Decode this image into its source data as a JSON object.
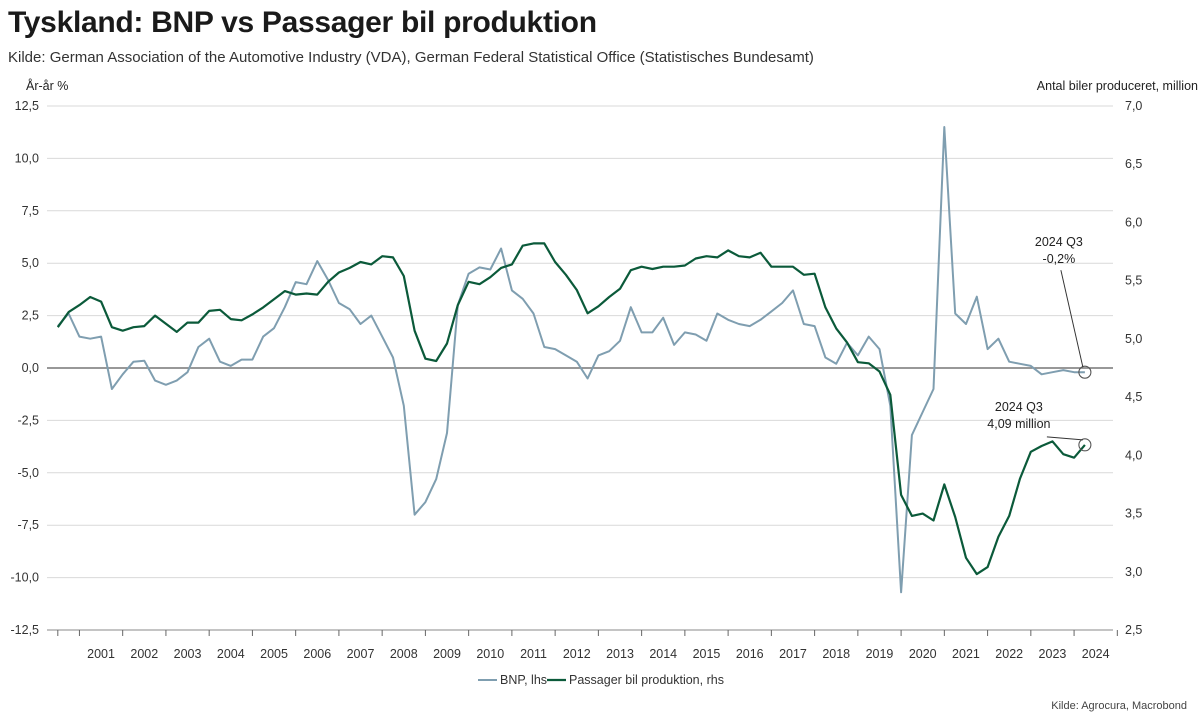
{
  "title": "Tyskland: BNP vs Passager bil produktion",
  "subtitle": "Kilde: German Association of the Automotive Industry (VDA), German Federal Statistical Office (Statistisches Bundesamt)",
  "source": "Kilde: Agrocura, Macrobond",
  "colors": {
    "gdp": "#7f9eb0",
    "cars": "#0b5a3a",
    "zero": "#777777",
    "grid": "#d9d9d9"
  },
  "chart_data": {
    "type": "line",
    "title": "Tyskland: BNP vs Passager bil produktion",
    "left_axis": {
      "label": "År-år %",
      "range": [
        -12.5,
        12.5
      ],
      "ticks": [
        "12,5",
        "10,0",
        "7,5",
        "5,0",
        "2,5",
        "0,0",
        "-2,5",
        "-5,0",
        "-7,5",
        "-10,0",
        "-12,5"
      ]
    },
    "right_axis": {
      "label": "Antal biler produceret, million",
      "range": [
        2.5,
        7.0
      ],
      "ticks": [
        "7,0",
        "6,5",
        "6,0",
        "5,5",
        "5,0",
        "4,5",
        "4,0",
        "3,5",
        "3,0",
        "2,5"
      ]
    },
    "x_labels": [
      "2001",
      "2002",
      "2003",
      "2004",
      "2005",
      "2006",
      "2007",
      "2008",
      "2009",
      "2010",
      "2011",
      "2012",
      "2013",
      "2014",
      "2015",
      "2016",
      "2017",
      "2018",
      "2019",
      "2020",
      "2021",
      "2022",
      "2023",
      "2024"
    ],
    "x_start": 2000.5,
    "x_step": 0.25,
    "series": [
      {
        "name": "BNP, lhs",
        "axis": "left",
        "values": [
          2.0,
          2.6,
          1.5,
          1.4,
          1.5,
          -1.0,
          -0.3,
          0.3,
          0.35,
          -0.6,
          -0.8,
          -0.6,
          -0.2,
          1.0,
          1.4,
          0.3,
          0.1,
          0.4,
          0.4,
          1.5,
          1.9,
          2.9,
          4.1,
          4.0,
          5.1,
          4.2,
          3.1,
          2.8,
          2.1,
          2.5,
          1.5,
          0.5,
          -1.8,
          -7.0,
          -6.4,
          -5.3,
          -3.1,
          3.0,
          4.5,
          4.8,
          4.7,
          5.7,
          3.7,
          3.3,
          2.6,
          1.0,
          0.9,
          0.6,
          0.3,
          -0.5,
          0.6,
          0.8,
          1.3,
          2.9,
          1.7,
          1.7,
          2.4,
          1.1,
          1.7,
          1.6,
          1.3,
          2.6,
          2.3,
          2.1,
          2.0,
          2.3,
          2.7,
          3.1,
          3.7,
          2.1,
          2.0,
          0.5,
          0.2,
          1.2,
          0.6,
          1.5,
          0.9,
          -1.8,
          -10.7,
          -3.2,
          -2.1,
          -1.0,
          11.5,
          2.6,
          2.1,
          3.4,
          0.9,
          1.4,
          0.3,
          0.2,
          0.1,
          -0.3,
          -0.2,
          -0.1,
          -0.2,
          -0.2
        ]
      },
      {
        "name": "Passager bil produktion, rhs",
        "axis": "right",
        "values": [
          5.1,
          5.23,
          5.29,
          5.36,
          5.32,
          5.1,
          5.07,
          5.1,
          5.11,
          5.2,
          5.13,
          5.06,
          5.14,
          5.14,
          5.24,
          5.25,
          5.17,
          5.16,
          5.21,
          5.27,
          5.34,
          5.41,
          5.38,
          5.39,
          5.38,
          5.49,
          5.57,
          5.61,
          5.66,
          5.64,
          5.71,
          5.7,
          5.54,
          5.07,
          4.83,
          4.81,
          4.96,
          5.29,
          5.49,
          5.47,
          5.53,
          5.61,
          5.64,
          5.8,
          5.82,
          5.82,
          5.66,
          5.55,
          5.42,
          5.22,
          5.28,
          5.36,
          5.43,
          5.59,
          5.62,
          5.6,
          5.62,
          5.62,
          5.63,
          5.69,
          5.71,
          5.7,
          5.76,
          5.71,
          5.7,
          5.74,
          5.62,
          5.62,
          5.62,
          5.55,
          5.56,
          5.27,
          5.09,
          4.97,
          4.8,
          4.79,
          4.72,
          4.52,
          3.66,
          3.48,
          3.5,
          3.44,
          3.75,
          3.47,
          3.12,
          2.98,
          3.04,
          3.3,
          3.48,
          3.8,
          4.03,
          4.08,
          4.12,
          4.01,
          3.98,
          4.09
        ]
      }
    ],
    "annotations": [
      {
        "series": "BNP, lhs",
        "line1": "2024 Q3",
        "line2": "-0,2%"
      },
      {
        "series": "Passager bil produktion, rhs",
        "line1": "2024 Q3",
        "line2": "4,09 million"
      }
    ],
    "legend": {
      "position": "bottom-center",
      "entries": [
        "BNP, lhs",
        "Passager bil produktion, rhs"
      ]
    }
  }
}
